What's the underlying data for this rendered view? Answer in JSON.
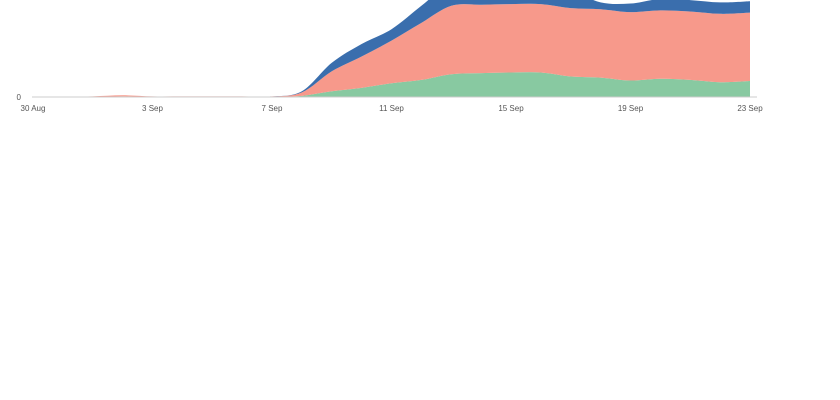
{
  "chart_data": {
    "type": "area",
    "stacked": true,
    "x": [
      "30 Aug",
      "31 Aug",
      "1 Sep",
      "2 Sep",
      "3 Sep",
      "4 Sep",
      "5 Sep",
      "6 Sep",
      "7 Sep",
      "8 Sep",
      "9 Sep",
      "10 Sep",
      "11 Sep",
      "12 Sep",
      "13 Sep",
      "14 Sep",
      "15 Sep",
      "16 Sep",
      "17 Sep",
      "18 Sep",
      "19 Sep",
      "20 Sep",
      "21 Sep",
      "22 Sep",
      "23 Sep"
    ],
    "x_ticks": [
      "30 Aug",
      "3 Sep",
      "7 Sep",
      "11 Sep",
      "15 Sep",
      "19 Sep",
      "23 Sep"
    ],
    "y_ticks": [
      "0"
    ],
    "series": [
      {
        "color": "#88c9a1",
        "values": [
          0,
          0,
          0,
          1,
          0,
          0,
          0,
          0,
          0,
          2,
          10,
          16,
          24,
          30,
          40,
          42,
          43,
          43,
          36,
          34,
          29,
          32,
          30,
          26,
          28
        ]
      },
      {
        "color": "#f7998b",
        "values": [
          0,
          0,
          1,
          2,
          1,
          1,
          1,
          1,
          1,
          6,
          35,
          55,
          75,
          100,
          120,
          120,
          120,
          120,
          120,
          120,
          120,
          120,
          120,
          120,
          120
        ]
      },
      {
        "color": "#3a6ead",
        "values": [
          0,
          0,
          0,
          0,
          0,
          0,
          0,
          0,
          0,
          2,
          15,
          22,
          20,
          30,
          40,
          40,
          40,
          40,
          32,
          12,
          15,
          20,
          20,
          20,
          20
        ]
      }
    ],
    "grid": false,
    "legend": "none"
  }
}
